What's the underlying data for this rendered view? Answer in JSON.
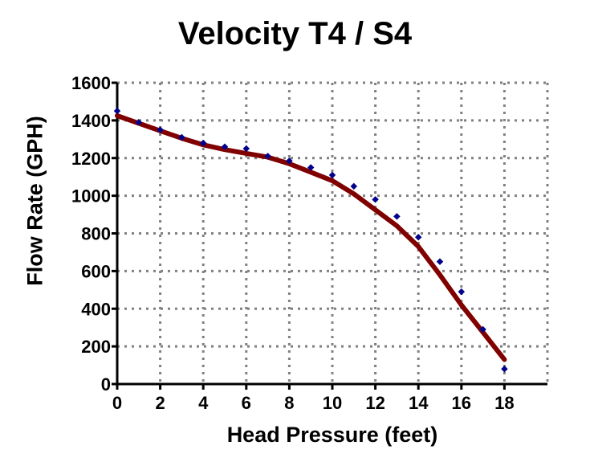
{
  "chart_data": {
    "type": "scatter",
    "title": "Velocity T4 / S4",
    "xlabel": "Head Pressure (feet)",
    "ylabel": "Flow Rate (GPH)",
    "xlim": [
      0,
      20
    ],
    "ylim": [
      0,
      1600
    ],
    "x_ticks": [
      "0",
      "2",
      "4",
      "6",
      "8",
      "10",
      "12",
      "14",
      "16",
      "18"
    ],
    "y_ticks": [
      "0",
      "200",
      "400",
      "600",
      "800",
      "1000",
      "1200",
      "1400",
      "1600"
    ],
    "grid": true,
    "series": [
      {
        "type": "scatter",
        "color": "#00008b",
        "x": [
          0,
          1,
          2,
          3,
          4,
          5,
          6,
          7,
          8,
          9,
          10,
          11,
          12,
          13,
          14,
          15,
          16,
          17,
          18
        ],
        "y": [
          1450,
          1390,
          1350,
          1310,
          1280,
          1260,
          1250,
          1210,
          1185,
          1150,
          1110,
          1050,
          980,
          890,
          780,
          650,
          490,
          290,
          80
        ]
      },
      {
        "type": "line",
        "color": "#800000",
        "x": [
          0,
          1,
          2,
          3,
          4,
          5,
          6,
          7,
          8,
          9,
          10,
          11,
          12,
          13,
          14,
          15,
          16,
          17,
          18
        ],
        "y": [
          1425,
          1385,
          1345,
          1305,
          1270,
          1245,
          1225,
          1205,
          1170,
          1125,
          1080,
          1010,
          925,
          840,
          730,
          580,
          420,
          275,
          130
        ]
      }
    ]
  }
}
